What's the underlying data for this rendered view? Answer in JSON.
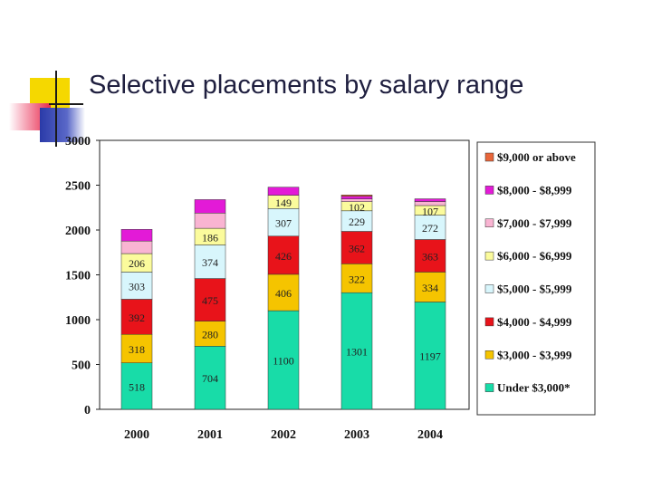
{
  "slide": {
    "title": "Selective placements by salary range"
  },
  "colors": {
    "title": "#1f1f3f",
    "deco_yellow": "#f5d800",
    "deco_red": "#e8274a",
    "deco_blue": "#2a3aa8",
    "deco_line": "#1a1a1a"
  },
  "chart_data": {
    "type": "bar",
    "stacked": true,
    "title": "",
    "xlabel": "",
    "ylabel": "",
    "ylim": [
      0,
      3000
    ],
    "yticks": [
      0,
      500,
      1000,
      1500,
      2000,
      2500,
      3000
    ],
    "ytick_labels": [
      "0",
      "500",
      "1000",
      "1500",
      "2000",
      "2500",
      "3000"
    ],
    "categories": [
      "2000",
      "2001",
      "2002",
      "2003",
      "2004"
    ],
    "legend_position": "right",
    "series": [
      {
        "name": "Under $3,000*",
        "color": "#18dca8",
        "values": [
          518,
          704,
          1100,
          1301,
          1197
        ],
        "labels": [
          "518",
          "704",
          "1100",
          "1301",
          "1197"
        ]
      },
      {
        "name": "$3,000 - $3,999",
        "color": "#f5c400",
        "values": [
          318,
          280,
          406,
          322,
          334
        ],
        "labels": [
          "318",
          "280",
          "406",
          "322",
          "334"
        ]
      },
      {
        "name": "$4,000 - $4,999",
        "color": "#e8131a",
        "values": [
          392,
          475,
          426,
          362,
          363
        ],
        "labels": [
          "392",
          "475",
          "426",
          "362",
          "363"
        ]
      },
      {
        "name": "$5,000 - $5,999",
        "color": "#d8f6fc",
        "values": [
          303,
          374,
          307,
          229,
          272
        ],
        "labels": [
          "303",
          "374",
          "307",
          "229",
          "272"
        ]
      },
      {
        "name": "$6,000 - $6,999",
        "color": "#fbfb9c",
        "values": [
          206,
          186,
          149,
          102,
          107
        ],
        "labels": [
          "206",
          "186",
          "149",
          "102",
          "107"
        ]
      },
      {
        "name": "$7,000 - $7,999",
        "color": "#f9b4d2",
        "values": [
          140,
          170,
          0,
          30,
          45
        ],
        "labels": [
          "",
          "",
          "",
          "",
          ""
        ]
      },
      {
        "name": "$8,000 - $8,999",
        "color": "#e31ad7",
        "values": [
          130,
          150,
          90,
          30,
          30
        ],
        "labels": [
          "",
          "",
          "",
          "",
          ""
        ]
      },
      {
        "name": "$9,000 or above",
        "color": "#e8663a",
        "values": [
          0,
          0,
          0,
          15,
          0
        ],
        "labels": [
          "",
          "",
          "",
          "",
          ""
        ]
      }
    ],
    "legend_order": [
      "$9,000 or above",
      "$8,000 - $8,999",
      "$7,000 - $7,999",
      "$6,000 - $6,999",
      "$5,000 - $5,999",
      "$4,000 - $4,999",
      "$3,000 - $3,999",
      "Under $3,000*"
    ]
  }
}
